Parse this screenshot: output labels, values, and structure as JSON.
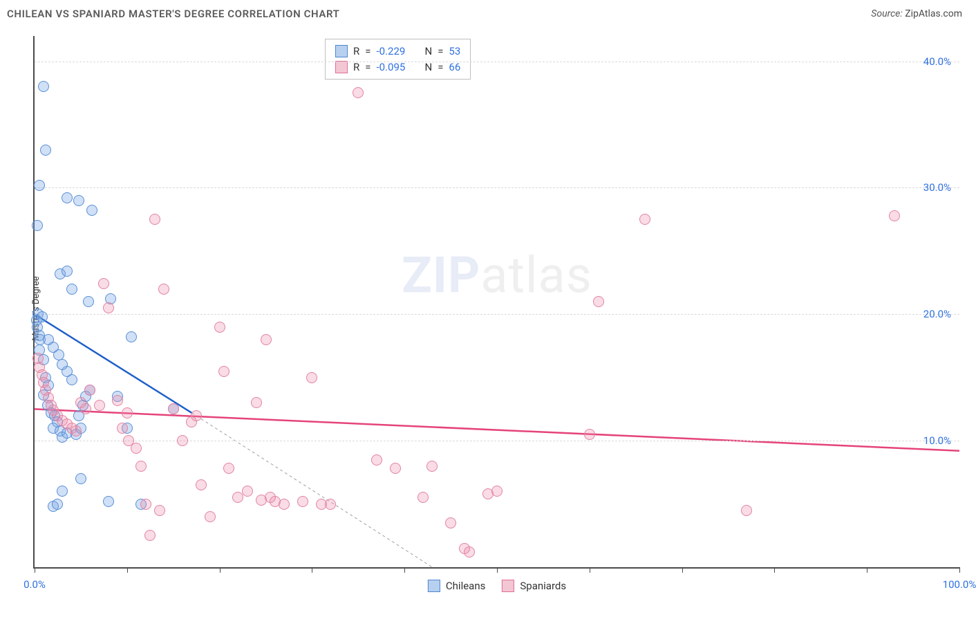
{
  "title": "CHILEAN VS SPANIARD MASTER'S DEGREE CORRELATION CHART",
  "source_label": "Source:",
  "source_name": "ZipAtlas.com",
  "watermark": {
    "bold": "ZIP",
    "rest": "atlas"
  },
  "chart": {
    "type": "scatter",
    "ylabel": "Master's Degree",
    "xlim": [
      0,
      100
    ],
    "ylim": [
      0,
      42
    ],
    "x_ticks": [
      0,
      10,
      20,
      30,
      40,
      50,
      60,
      70,
      80,
      90,
      100
    ],
    "x_tick_labels": {
      "0": "0.0%",
      "100": "100.0%"
    },
    "y_gridlines": [
      10,
      20,
      30,
      40
    ],
    "y_tick_labels": {
      "10": "10.0%",
      "20": "20.0%",
      "30": "30.0%",
      "40": "40.0%"
    },
    "grid_color": "#d9d9d9",
    "axis_color": "#4a4a4a",
    "background_color": "#ffffff",
    "marker_radius": 8,
    "marker_border_width": 1.5,
    "series": [
      {
        "name": "Chileans",
        "fill": "rgba(120,165,230,0.35)",
        "stroke": "#5a8fd6",
        "swatch_fill": "#b8d0ef",
        "swatch_stroke": "#4d86d0",
        "R": "-0.229",
        "N": "53",
        "trend": {
          "x1": 0,
          "y1": 20,
          "x2": 17,
          "y2": 12.2,
          "color": "#1f5fc9",
          "width": 2.5
        },
        "trend_ext": {
          "x1": 17,
          "y1": 12.2,
          "x2": 43,
          "y2": 0,
          "color": "#9aa0a6",
          "width": 1,
          "dash": "4 4"
        },
        "points": [
          [
            0.2,
            19.5
          ],
          [
            0.3,
            19.0
          ],
          [
            0.5,
            18.3
          ],
          [
            0.4,
            20.0
          ],
          [
            0.8,
            19.8
          ],
          [
            0.6,
            18.0
          ],
          [
            0.5,
            17.2
          ],
          [
            1.0,
            16.4
          ],
          [
            1.2,
            15.0
          ],
          [
            1.5,
            14.4
          ],
          [
            1.0,
            13.6
          ],
          [
            1.4,
            12.8
          ],
          [
            1.8,
            12.2
          ],
          [
            2.2,
            12.0
          ],
          [
            2.5,
            11.5
          ],
          [
            2.0,
            11.0
          ],
          [
            2.8,
            10.8
          ],
          [
            3.0,
            10.3
          ],
          [
            3.5,
            10.6
          ],
          [
            4.5,
            10.5
          ],
          [
            5.0,
            11.0
          ],
          [
            4.8,
            12.0
          ],
          [
            5.2,
            12.8
          ],
          [
            5.5,
            13.5
          ],
          [
            6.0,
            14.0
          ],
          [
            4.0,
            14.8
          ],
          [
            3.5,
            15.5
          ],
          [
            3.0,
            16.0
          ],
          [
            2.6,
            16.8
          ],
          [
            2.0,
            17.4
          ],
          [
            1.5,
            18.0
          ],
          [
            0.3,
            27.0
          ],
          [
            1.0,
            38.0
          ],
          [
            1.2,
            33.0
          ],
          [
            0.5,
            30.2
          ],
          [
            3.5,
            29.2
          ],
          [
            4.8,
            29.0
          ],
          [
            6.2,
            28.2
          ],
          [
            2.8,
            23.2
          ],
          [
            3.5,
            23.4
          ],
          [
            4.0,
            22.0
          ],
          [
            5.8,
            21.0
          ],
          [
            8.2,
            21.2
          ],
          [
            10.5,
            18.2
          ],
          [
            2.0,
            4.8
          ],
          [
            2.5,
            5.0
          ],
          [
            3.0,
            6.0
          ],
          [
            5.0,
            7.0
          ],
          [
            8.0,
            5.2
          ],
          [
            10.0,
            11.0
          ],
          [
            11.5,
            5.0
          ],
          [
            9.0,
            13.5
          ],
          [
            15.0,
            12.5
          ]
        ]
      },
      {
        "name": "Spaniards",
        "fill": "rgba(235,140,170,0.30)",
        "stroke": "#e283a3",
        "swatch_fill": "#f3c6d4",
        "swatch_stroke": "#e06e94",
        "R": "-0.095",
        "N": "66",
        "trend": {
          "x1": 0,
          "y1": 12.5,
          "x2": 100,
          "y2": 9.2,
          "color": "#e5437b",
          "width": 2.5
        },
        "points": [
          [
            0.4,
            16.5
          ],
          [
            0.5,
            15.8
          ],
          [
            0.8,
            15.2
          ],
          [
            1.0,
            14.6
          ],
          [
            1.2,
            14.0
          ],
          [
            1.5,
            13.4
          ],
          [
            1.8,
            12.8
          ],
          [
            2.0,
            12.4
          ],
          [
            2.5,
            12.0
          ],
          [
            3.0,
            11.6
          ],
          [
            3.5,
            11.3
          ],
          [
            4.0,
            11.0
          ],
          [
            4.5,
            10.8
          ],
          [
            5.0,
            13.0
          ],
          [
            5.5,
            12.5
          ],
          [
            6.0,
            14.0
          ],
          [
            7.0,
            12.8
          ],
          [
            7.5,
            22.4
          ],
          [
            8.0,
            20.5
          ],
          [
            9.0,
            13.2
          ],
          [
            9.5,
            11.0
          ],
          [
            10.0,
            12.2
          ],
          [
            10.2,
            10.0
          ],
          [
            11.0,
            9.4
          ],
          [
            11.5,
            8.0
          ],
          [
            12.0,
            5.0
          ],
          [
            12.5,
            2.5
          ],
          [
            13.0,
            27.5
          ],
          [
            14.0,
            22.0
          ],
          [
            15.0,
            12.5
          ],
          [
            16.0,
            10.0
          ],
          [
            17.0,
            11.5
          ],
          [
            17.5,
            12.0
          ],
          [
            18.0,
            6.5
          ],
          [
            19.0,
            4.0
          ],
          [
            20.0,
            19.0
          ],
          [
            20.5,
            15.5
          ],
          [
            21.0,
            7.8
          ],
          [
            22.0,
            5.5
          ],
          [
            23.0,
            6.0
          ],
          [
            24.0,
            13.0
          ],
          [
            24.5,
            5.3
          ],
          [
            25.0,
            18.0
          ],
          [
            25.5,
            5.5
          ],
          [
            26.0,
            5.2
          ],
          [
            27.0,
            5.0
          ],
          [
            29.0,
            5.2
          ],
          [
            30.0,
            15.0
          ],
          [
            31.0,
            5.0
          ],
          [
            32.0,
            5.0
          ],
          [
            35.0,
            37.5
          ],
          [
            37.0,
            8.5
          ],
          [
            39.0,
            7.8
          ],
          [
            42.0,
            5.5
          ],
          [
            43.0,
            8.0
          ],
          [
            45.0,
            3.5
          ],
          [
            46.5,
            1.5
          ],
          [
            47.0,
            1.2
          ],
          [
            49.0,
            5.8
          ],
          [
            50.0,
            6.0
          ],
          [
            60.0,
            10.5
          ],
          [
            61.0,
            21.0
          ],
          [
            66.0,
            27.5
          ],
          [
            77.0,
            4.5
          ],
          [
            93.0,
            27.8
          ],
          [
            13.5,
            4.5
          ]
        ]
      }
    ]
  },
  "stats_box": {
    "R_label": "R",
    "N_label": "N",
    "eq": "="
  },
  "bottom_legend": {
    "items": [
      "Chileans",
      "Spaniards"
    ]
  }
}
